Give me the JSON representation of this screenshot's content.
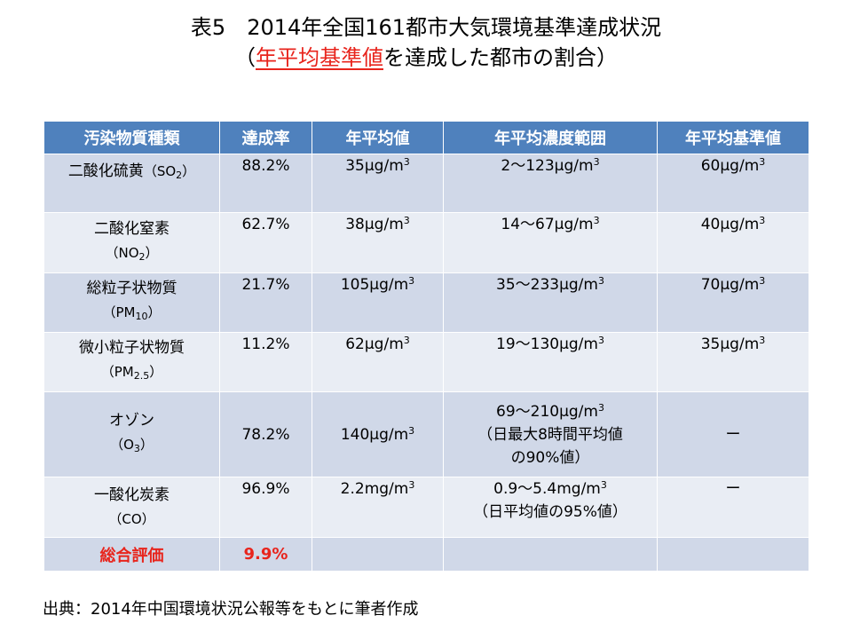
{
  "title": {
    "line1": "表5　2014年全国161都市大気環境基準達成状況",
    "line2_prefix": "（",
    "line2_highlight": "年平均基準値",
    "line2_suffix": "を達成した都市の割合）"
  },
  "table": {
    "headers": [
      "汚染物質種類",
      "達成率",
      "年平均値",
      "年平均濃度範囲",
      "年平均基準値"
    ],
    "rows": [
      {
        "name": "二酸化硫黄",
        "formula_open": "（",
        "formula_main": "SO",
        "formula_sub": "2",
        "formula_close": "）",
        "rate": "88.2%",
        "mean": "35μg/m",
        "mean_sup": "3",
        "range": "2～123μg/m",
        "range_sup": "3",
        "range_note": "",
        "standard": "60μg/m",
        "standard_sup": "3"
      },
      {
        "name": "二酸化窒素",
        "formula_open": "（",
        "formula_main": "NO",
        "formula_sub": "2",
        "formula_close": "）",
        "rate": "62.7%",
        "mean": "38μg/m",
        "mean_sup": "3",
        "range": "14～67μg/m",
        "range_sup": "3",
        "range_note": "",
        "standard": "40μg/m",
        "standard_sup": "3"
      },
      {
        "name": "総粒子状物質",
        "formula_open": "（",
        "formula_main": "PM",
        "formula_sub": "10",
        "formula_close": "）",
        "rate": "21.7%",
        "mean": "105μg/m",
        "mean_sup": "3",
        "range": "35～233μg/m",
        "range_sup": "3",
        "range_note": "",
        "standard": "70μg/m",
        "standard_sup": "3"
      },
      {
        "name": "微小粒子状物質",
        "formula_open": "（",
        "formula_main": "PM",
        "formula_sub": "2.5",
        "formula_close": "）",
        "rate": "11.2%",
        "mean": "62μg/m",
        "mean_sup": "3",
        "range": "19～130μg/m",
        "range_sup": "3",
        "range_note": "",
        "standard": "35μg/m",
        "standard_sup": "3"
      },
      {
        "name": "オゾン",
        "formula_open": "（",
        "formula_main": "O",
        "formula_sub": "3",
        "formula_close": "）",
        "rate": "78.2%",
        "mean": "140μg/m",
        "mean_sup": "3",
        "range": "69～210μg/m",
        "range_sup": "3",
        "range_note_1": "（日最大8時間平均値",
        "range_note_2": "の90%値）",
        "standard": "ー",
        "standard_sup": ""
      },
      {
        "name": "一酸化炭素",
        "formula_open": "（",
        "formula_main": "CO",
        "formula_sub": "",
        "formula_close": "）",
        "rate": "96.9%",
        "mean": "2.2mg/m",
        "mean_sup": "3",
        "range": "0.9～5.4mg/m",
        "range_sup": "3",
        "range_note_1": "（日平均値の95%値）",
        "standard": "ー",
        "standard_sup": ""
      }
    ],
    "total": {
      "label": "総合評価",
      "rate": "9.9%"
    }
  },
  "source": "出典：2014年中国環境状況公報等をもとに筆者作成",
  "colors": {
    "header_bg": "#4f81bd",
    "row_odd_bg": "#d0d8e8",
    "row_even_bg": "#e9edf4",
    "highlight_red": "#e8241c"
  }
}
